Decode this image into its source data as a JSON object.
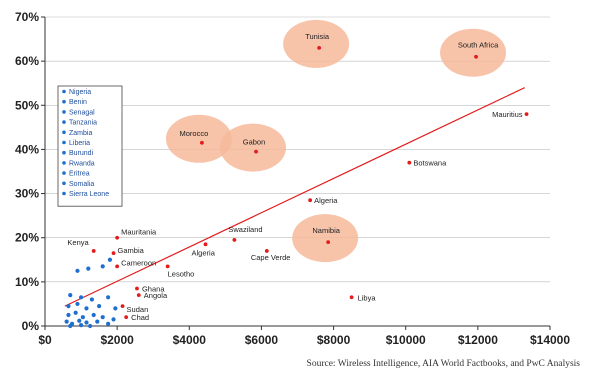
{
  "source_note": "Source: Wireless Intelligence, AIA World Factbooks, and PwC Analysis",
  "colors": {
    "labeled_point": "#e31b1b",
    "low_group_point": "#1f6fd1",
    "trend_line": "#e31b1b",
    "highlight": "#f6b99a",
    "legend_text": "#1f4e9a",
    "grid": "#bdbdbd"
  },
  "chart_data": {
    "type": "scatter",
    "title": "",
    "xlabel": "",
    "ylabel": "",
    "xlim": [
      0,
      14000
    ],
    "ylim": [
      0,
      0.7
    ],
    "x_ticks": [
      {
        "value": 0,
        "label": "$0"
      },
      {
        "value": 2000,
        "label": "$2000"
      },
      {
        "value": 4000,
        "label": "$4000"
      },
      {
        "value": 6000,
        "label": "$6000"
      },
      {
        "value": 8000,
        "label": "$8000"
      },
      {
        "value": 10000,
        "label": "$10000"
      },
      {
        "value": 12000,
        "label": "$12000"
      },
      {
        "value": 14000,
        "label": "$14000"
      }
    ],
    "y_ticks": [
      {
        "value": 0,
        "label": "0%"
      },
      {
        "value": 0.1,
        "label": "10%"
      },
      {
        "value": 0.2,
        "label": "20%"
      },
      {
        "value": 0.3,
        "label": "30%"
      },
      {
        "value": 0.4,
        "label": "40%"
      },
      {
        "value": 0.5,
        "label": "50%"
      },
      {
        "value": 0.6,
        "label": "60%"
      },
      {
        "value": 0.7,
        "label": "70%"
      }
    ],
    "grid": {
      "horizontal": true,
      "vertical": false
    },
    "labeled_points": [
      {
        "label": "Tunisia",
        "x": 7600,
        "y": 0.63,
        "highlight": true
      },
      {
        "label": "South Africa",
        "x": 11950,
        "y": 0.61,
        "highlight": true
      },
      {
        "label": "Mauritius",
        "x": 13350,
        "y": 0.48,
        "highlight": false
      },
      {
        "label": "Morocco",
        "x": 4350,
        "y": 0.415,
        "highlight": true
      },
      {
        "label": "Gabon",
        "x": 5850,
        "y": 0.395,
        "highlight": true
      },
      {
        "label": "Botswana",
        "x": 10100,
        "y": 0.37,
        "highlight": false
      },
      {
        "label": "Algeria",
        "x": 7350,
        "y": 0.285,
        "highlight": false
      },
      {
        "label": "Namibia",
        "x": 7850,
        "y": 0.19,
        "highlight": true
      },
      {
        "label": "Swaziland",
        "x": 5250,
        "y": 0.195,
        "highlight": false
      },
      {
        "label": "Algeria",
        "x": 4450,
        "y": 0.185,
        "highlight": false
      },
      {
        "label": "Cape Verde",
        "x": 6150,
        "y": 0.17,
        "highlight": false
      },
      {
        "label": "Mauritania",
        "x": 2000,
        "y": 0.2,
        "highlight": false
      },
      {
        "label": "Kenya",
        "x": 1350,
        "y": 0.17,
        "highlight": false
      },
      {
        "label": "Gambia",
        "x": 1900,
        "y": 0.165,
        "highlight": false
      },
      {
        "label": "Cameroon",
        "x": 2000,
        "y": 0.135,
        "highlight": false
      },
      {
        "label": "Lesotho",
        "x": 3400,
        "y": 0.135,
        "highlight": false
      },
      {
        "label": "Ghana",
        "x": 2550,
        "y": 0.085,
        "highlight": false
      },
      {
        "label": "Angola",
        "x": 2600,
        "y": 0.07,
        "highlight": false
      },
      {
        "label": "Sudan",
        "x": 2150,
        "y": 0.045,
        "highlight": false
      },
      {
        "label": "Chad",
        "x": 2250,
        "y": 0.02,
        "highlight": false
      },
      {
        "label": "Libya",
        "x": 8500,
        "y": 0.065,
        "highlight": false
      }
    ],
    "unlabeled_group": {
      "legend": [
        "Nigeria",
        "Benin",
        "Senagal",
        "Tanzania",
        "Zambia",
        "Liberia",
        "Burundi",
        "Rwanda",
        "Eritrea",
        "Somalia",
        "Sierra Leone"
      ],
      "points": [
        [
          900,
          0.125
        ],
        [
          1200,
          0.13
        ],
        [
          1600,
          0.135
        ],
        [
          1800,
          0.15
        ],
        [
          700,
          0.07
        ],
        [
          1000,
          0.065
        ],
        [
          1300,
          0.06
        ],
        [
          1750,
          0.065
        ],
        [
          650,
          0.045
        ],
        [
          900,
          0.05
        ],
        [
          1150,
          0.04
        ],
        [
          1500,
          0.045
        ],
        [
          1950,
          0.04
        ],
        [
          650,
          0.025
        ],
        [
          850,
          0.03
        ],
        [
          1050,
          0.02
        ],
        [
          1350,
          0.025
        ],
        [
          1600,
          0.02
        ],
        [
          1900,
          0.015
        ],
        [
          600,
          0.01
        ],
        [
          750,
          0.005
        ],
        [
          950,
          0.012
        ],
        [
          1150,
          0.008
        ],
        [
          1450,
          0.01
        ],
        [
          1750,
          0.005
        ],
        [
          700,
          0.0
        ],
        [
          1000,
          0.002
        ],
        [
          1250,
          0.0
        ]
      ]
    },
    "trend_line": {
      "from": [
        550,
        0.045
      ],
      "to": [
        13300,
        0.54
      ]
    }
  }
}
